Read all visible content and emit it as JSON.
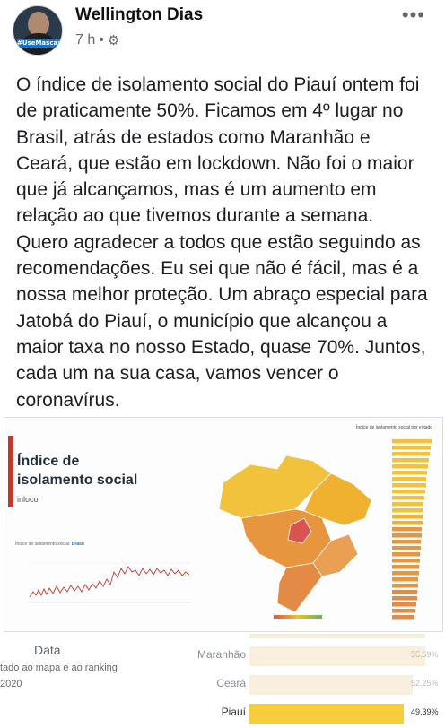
{
  "post": {
    "author": "Wellington Dias",
    "time": "7 h",
    "separator": "•",
    "avatar_tag": "#UseMascara",
    "text": "O índice de isolamento social do Piauí ontem foi de praticamente 50%. Ficamos em 4º lugar no Brasil, atrás de estados como Maranhão e Ceará, que estão em lockdown. Não foi o maior que já alcançamos, mas é um aumento em relação ao que tivemos durante a semana. Quero agradecer a todos que estão seguindo as recomendações. Eu sei que não é fácil, mas é a nossa melhor proteção. Um abraço especial para Jatobá do Piauí, o município que alcançou a maior taxa no nosso Estado, quase 70%. Juntos, cada um na sua casa, vamos vencer o coronavírus."
  },
  "icons": {
    "more": "more-dots-icon",
    "privacy": "gear-icon"
  },
  "infographic": {
    "title_line1": "Índice de",
    "title_line2": "isolamento social",
    "source": "inloco",
    "line_title_prefix": "Índice de isolamento social:",
    "line_title_region": "Brasil",
    "ranking_title": "Índice de isolamento social por estado",
    "colors": {
      "high": "#f0c419",
      "mid": "#e8953f",
      "low": "#d9534f",
      "accent": "#c0392b"
    }
  },
  "crop": {
    "data_label": "Data",
    "subtitle1": "tado ao mapa e ao ranking",
    "subtitle2": "2020",
    "rows": [
      {
        "state": "Maranhão",
        "value": "55,69%",
        "highlight": false
      },
      {
        "state": "Ceará",
        "value": "52,25%",
        "highlight": false
      },
      {
        "state": "Piauí",
        "value": "49,39%",
        "highlight": true
      }
    ]
  }
}
